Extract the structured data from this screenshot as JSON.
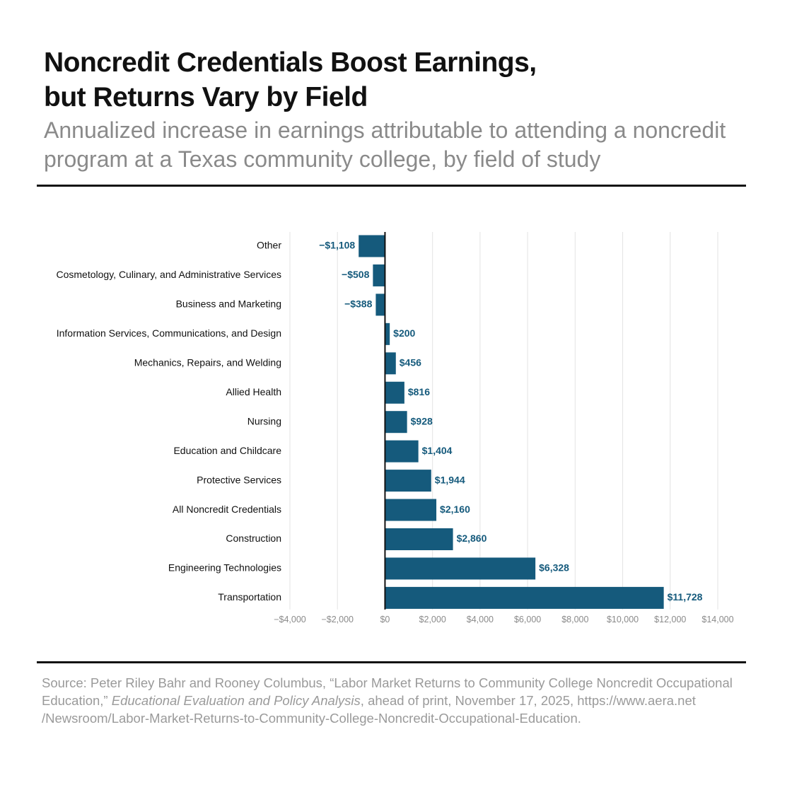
{
  "title": {
    "line1": "Noncredit Credentials Boost Earnings,",
    "line2": "but Returns Vary by Field"
  },
  "subtitle": {
    "line1": "Annualized increase in earnings attributable to attending a noncredit",
    "line2": "program at a Texas community college, by field of study"
  },
  "source": {
    "prefix": "Source: Peter Riley Bahr and Rooney Columbus, “Labor Market Returns to Community College Noncredit Occupational Education,” ",
    "journal": "Educational Evaluation and Policy Analysis",
    "suffix": ", ahead of print, November 17, 2025, https://www.aera.net  /Newsroom/Labor-Market-Returns-to-Community-College-Noncredit-Occupational-Education."
  },
  "colors": {
    "bar": "#155a7c",
    "value_label": "#155a7c",
    "grid": "#e3e3e3",
    "zero_axis": "#111111"
  },
  "chart_data": {
    "type": "bar",
    "orientation": "horizontal",
    "categories": [
      "Other",
      "Cosmetology, Culinary, and Administrative Services",
      "Business and Marketing",
      "Information Services, Communications, and Design",
      "Mechanics, Repairs, and Welding",
      "Allied Health",
      "Nursing",
      "Education and Childcare",
      "Protective Services",
      "All Noncredit Credentials",
      "Construction",
      "Engineering Technologies",
      "Transportation"
    ],
    "values": [
      -1108,
      -508,
      -388,
      200,
      456,
      816,
      928,
      1404,
      1944,
      2160,
      2860,
      6328,
      11728
    ],
    "value_labels": [
      "−$1,108",
      "−$508",
      "−$388",
      "$200",
      "$456",
      "$816",
      "$928",
      "$1,404",
      "$1,944",
      "$2,160",
      "$2,860",
      "$6,328",
      "$11,728"
    ],
    "xlim": [
      -4000,
      14000
    ],
    "xticks": [
      -4000,
      -2000,
      0,
      2000,
      4000,
      6000,
      8000,
      10000,
      12000,
      14000
    ],
    "xtick_labels": [
      "−$4,000",
      "−$2,000",
      "$0",
      "$2,000",
      "$4,000",
      "$6,000",
      "$8,000",
      "$10,000",
      "$12,000",
      "$14,000"
    ],
    "grid": true,
    "legend": false
  }
}
